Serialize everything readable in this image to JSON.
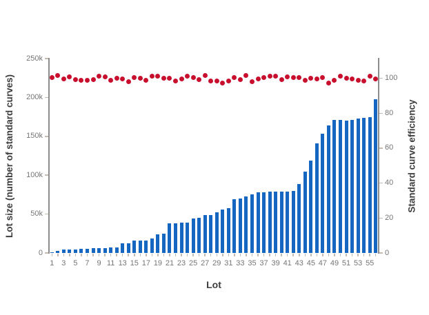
{
  "chart_data": {
    "type": "bar",
    "title": "",
    "xlabel": "Lot",
    "categories": [
      1,
      2,
      3,
      4,
      5,
      6,
      7,
      8,
      9,
      10,
      11,
      12,
      13,
      14,
      15,
      16,
      17,
      18,
      19,
      20,
      21,
      22,
      23,
      24,
      25,
      26,
      27,
      28,
      29,
      30,
      31,
      32,
      33,
      34,
      35,
      36,
      37,
      38,
      39,
      40,
      41,
      42,
      43,
      44,
      45,
      46,
      47,
      48,
      49,
      50,
      51,
      52,
      53,
      54,
      55,
      56
    ],
    "x_tick_labels": [
      "1",
      "3",
      "5",
      "7",
      "9",
      "11",
      "13",
      "15",
      "17",
      "19",
      "21",
      "23",
      "25",
      "27",
      "29",
      "31",
      "33",
      "35",
      "37",
      "39",
      "41",
      "43",
      "45",
      "47",
      "49",
      "51",
      "53",
      "55"
    ],
    "series": [
      {
        "name": "Lot size (number of standard curves)",
        "type": "bar",
        "axis": "left",
        "color": "#1566c1",
        "values": [
          1000,
          3000,
          4000,
          4000,
          4000,
          5000,
          5000,
          6000,
          6000,
          6000,
          7000,
          7000,
          12000,
          12000,
          16000,
          16000,
          16000,
          19000,
          24000,
          25000,
          38000,
          38000,
          39000,
          39000,
          44000,
          45000,
          49000,
          49000,
          52000,
          56000,
          58000,
          69000,
          70000,
          73000,
          75000,
          78000,
          78000,
          79000,
          79000,
          79000,
          79000,
          80000,
          89000,
          105000,
          119000,
          141000,
          153000,
          164000,
          171000,
          171000,
          170000,
          171000,
          173000,
          174000,
          175000,
          198000
        ]
      },
      {
        "name": "Standard curve efficiency",
        "type": "scatter",
        "axis": "right",
        "color": "#c8102e",
        "values": [
          100.3,
          101.6,
          99.6,
          100.9,
          99.2,
          98.9,
          98.9,
          99.2,
          101.2,
          100.9,
          98.9,
          100.0,
          99.6,
          97.9,
          100.5,
          100.0,
          98.9,
          101.2,
          101.2,
          100.0,
          100.0,
          98.3,
          99.6,
          101.2,
          100.3,
          99.2,
          101.6,
          98.3,
          98.3,
          97.4,
          98.3,
          100.3,
          99.2,
          101.6,
          97.9,
          99.6,
          100.5,
          101.2,
          101.2,
          99.2,
          100.9,
          100.5,
          100.3,
          98.9,
          100.0,
          99.6,
          100.3,
          97.4,
          98.9,
          101.2,
          100.0,
          99.6,
          98.9,
          98.3,
          101.2,
          99.6
        ]
      }
    ],
    "left_axis": {
      "title": "Lot size (number of standard curves)",
      "ylim": [
        0,
        250000
      ],
      "ticks": [
        {
          "value": 0,
          "label": "0"
        },
        {
          "value": 50000,
          "label": "50k"
        },
        {
          "value": 100000,
          "label": "100k"
        },
        {
          "value": 150000,
          "label": "150k"
        },
        {
          "value": 200000,
          "label": "200k"
        },
        {
          "value": 250000,
          "label": "250k"
        }
      ]
    },
    "right_axis": {
      "title": "Standard curve efficiency",
      "ylim": [
        0,
        111
      ],
      "ticks": [
        {
          "value": 0,
          "label": "0"
        },
        {
          "value": 20,
          "label": "20"
        },
        {
          "value": 40,
          "label": "40"
        },
        {
          "value": 60,
          "label": "60"
        },
        {
          "value": 80,
          "label": "80"
        },
        {
          "value": 100,
          "label": "100"
        }
      ]
    },
    "legend": "none",
    "grid": false,
    "colors": {
      "bar": "#1566c1",
      "dot": "#c8102e",
      "axis_line": "#8c8c8c",
      "tick_mark": "#c4bcb1",
      "tick_label": "#757575",
      "axis_title": "#3c3c3c",
      "background": "#ffffff"
    }
  }
}
